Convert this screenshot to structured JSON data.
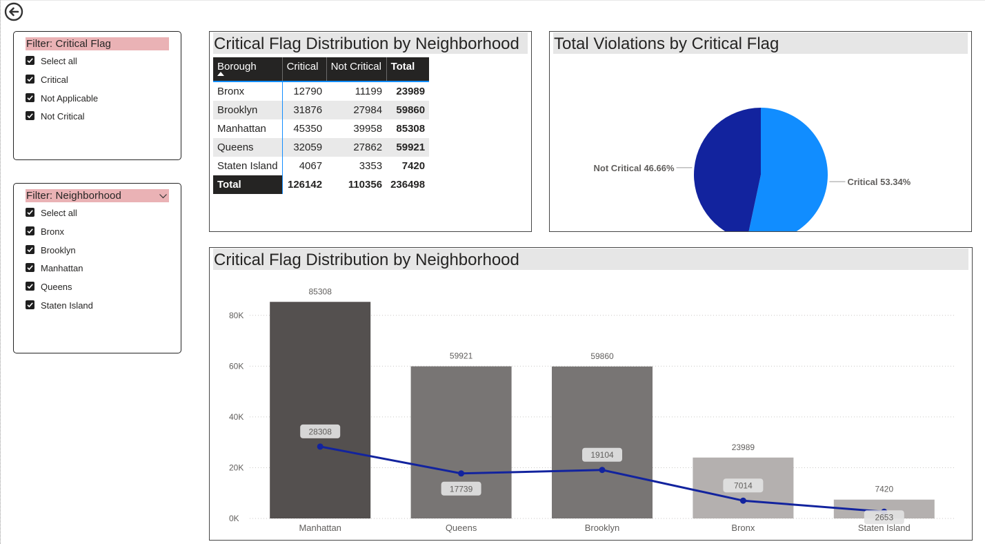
{
  "slicers": [
    {
      "title": "Filter: Critical Flag",
      "has_dropdown": false,
      "items": [
        "Select all",
        "Critical",
        "Not Applicable",
        "Not Critical"
      ]
    },
    {
      "title": "Filter: Neighborhood",
      "has_dropdown": true,
      "items": [
        "Select all",
        "Bronx",
        "Brooklyn",
        "Manhattan",
        "Queens",
        "Staten Island"
      ]
    }
  ],
  "matrix": {
    "title": "Critical Flag Distribution by Neighborhood",
    "columns": [
      "Borough",
      "Critical",
      "Not Critical",
      "Total"
    ],
    "rows": [
      [
        "Bronx",
        "12790",
        "11199",
        "23989"
      ],
      [
        "Brooklyn",
        "31876",
        "27984",
        "59860"
      ],
      [
        "Manhattan",
        "45350",
        "39958",
        "85308"
      ],
      [
        "Queens",
        "32059",
        "27862",
        "59921"
      ],
      [
        "Staten Island",
        "4067",
        "3353",
        "7420"
      ]
    ],
    "total_row": [
      "Total",
      "126142",
      "110356",
      "236498"
    ]
  },
  "pie": {
    "title": "Total Violations by Critical Flag",
    "chart_data": {
      "type": "pie",
      "slices": [
        {
          "label": "Critical",
          "value": 53.34,
          "display": "Critical 53.34%",
          "color": "#118dff"
        },
        {
          "label": "Not Critical",
          "value": 46.66,
          "display": "Not Critical 46.66%",
          "color": "#12239e"
        }
      ]
    }
  },
  "combo": {
    "title": "Critical Flag Distribution by Neighborhood",
    "chart_data": {
      "type": "bar",
      "categories": [
        "Manhattan",
        "Queens",
        "Brooklyn",
        "Bronx",
        "Staten Island"
      ],
      "series": [
        {
          "kind": "bar",
          "values": [
            85308,
            59921,
            59860,
            23989,
            7420
          ],
          "colors": [
            "#54504f",
            "#787574",
            "#787574",
            "#b4b0af",
            "#b4b0af"
          ]
        },
        {
          "kind": "line",
          "values": [
            28308,
            17739,
            19104,
            7014,
            2653
          ],
          "color": "#12239e"
        }
      ],
      "ylim": [
        0,
        90000
      ],
      "yticks": [
        0,
        20000,
        40000,
        60000,
        80000
      ],
      "ytick_labels": [
        "0K",
        "20K",
        "40K",
        "60K",
        "80K"
      ],
      "grid": true
    }
  }
}
